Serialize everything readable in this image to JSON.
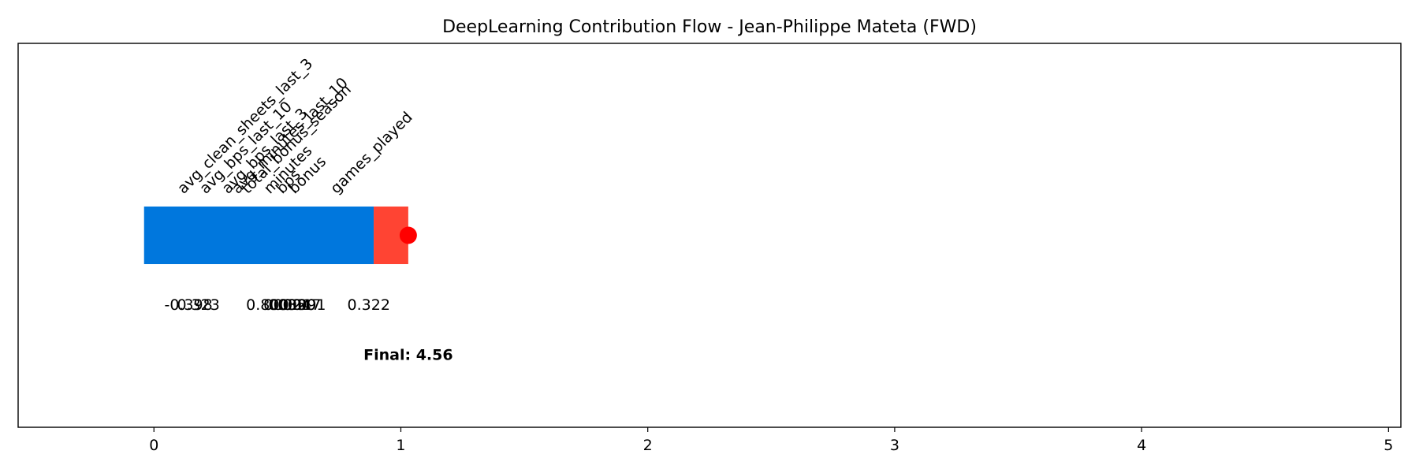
{
  "chart_data": {
    "type": "waterfall",
    "title": "DeepLearning Contribution Flow - Jean-Philippe Mateta (FWD)",
    "xlabel": "",
    "ylabel": "",
    "xlim": [
      -0.55,
      5.05
    ],
    "ylim": [
      -0.8,
      0.8
    ],
    "xticks": [
      0,
      1,
      2,
      3,
      4,
      5
    ],
    "grid": false,
    "steps": [
      {
        "feature": "avg_clean_sheets_last_3",
        "label_x": 0.12,
        "value_label": "-0.398",
        "value_label_x": 0.14,
        "color": "#0077dd"
      },
      {
        "feature": "avg_bps_last_10",
        "label_x": 0.21,
        "value_label": "0.323",
        "value_label_x": 0.18,
        "color": "#0077dd"
      },
      {
        "feature": "avg_bps_last_3",
        "label_x": 0.3,
        "value_label": "0.800",
        "value_label_x": 0.46,
        "color": "#0077dd"
      },
      {
        "feature": "avg_minutes_last_10",
        "label_x": 0.34,
        "value_label": "0.035",
        "value_label_x": 0.53,
        "color": "#0077dd"
      },
      {
        "feature": "total_bonus_season",
        "label_x": 0.38,
        "value_label": "0.024",
        "value_label_x": 0.55,
        "color": "#0077dd"
      },
      {
        "feature": "minutes",
        "label_x": 0.47,
        "value_label": "0.020",
        "value_label_x": 0.57,
        "color": "#0077dd"
      },
      {
        "feature": "bps",
        "label_x": 0.52,
        "value_label": "0.017",
        "value_label_x": 0.59,
        "color": "#0077dd"
      },
      {
        "feature": "bonus",
        "label_x": 0.57,
        "value_label": "0.091",
        "value_label_x": 0.61,
        "color": "#0077dd"
      },
      {
        "feature": "games_played",
        "label_x": 0.74,
        "value_label": "0.322",
        "value_label_x": 0.87,
        "color": "#0077dd"
      }
    ],
    "bars": [
      {
        "start": -0.04,
        "end": 0.89,
        "color": "#0077dd"
      },
      {
        "start": 0.89,
        "end": 1.03,
        "color": "#ff4433"
      }
    ],
    "final_marker": {
      "x": 1.03,
      "color": "#ff0000"
    },
    "final_label": "Final: 4.56",
    "final_label_x": 1.03
  }
}
